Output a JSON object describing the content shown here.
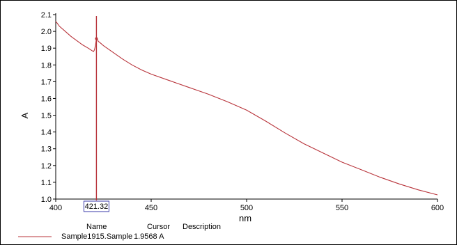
{
  "chart_data": {
    "type": "line",
    "xlabel": "nm",
    "ylabel": "A",
    "xlim": [
      400,
      600
    ],
    "ylim": [
      1.0,
      2.1
    ],
    "x_ticks": [
      400,
      450,
      500,
      550,
      600
    ],
    "y_ticks": [
      1.0,
      1.1,
      1.2,
      1.3,
      1.4,
      1.5,
      1.6,
      1.7,
      1.8,
      1.9,
      2.0,
      2.1
    ],
    "grid": false,
    "cursor": {
      "x": 421.32,
      "label": "421.32"
    },
    "series": [
      {
        "name": "Sample1915.Sample",
        "color": "#b8333a",
        "points": [
          [
            400,
            2.06
          ],
          [
            402,
            2.03
          ],
          [
            405,
            2.0
          ],
          [
            408,
            1.97
          ],
          [
            411,
            1.945
          ],
          [
            414,
            1.92
          ],
          [
            417,
            1.9
          ],
          [
            419,
            1.885
          ],
          [
            419.8,
            1.88
          ],
          [
            420.3,
            1.89
          ],
          [
            420.8,
            1.915
          ],
          [
            421.32,
            1.9568
          ],
          [
            421.8,
            1.955
          ],
          [
            422.3,
            1.94
          ],
          [
            423,
            1.935
          ],
          [
            425,
            1.915
          ],
          [
            430,
            1.875
          ],
          [
            435,
            1.835
          ],
          [
            440,
            1.8
          ],
          [
            445,
            1.77
          ],
          [
            450,
            1.745
          ],
          [
            460,
            1.705
          ],
          [
            470,
            1.665
          ],
          [
            480,
            1.625
          ],
          [
            490,
            1.58
          ],
          [
            500,
            1.53
          ],
          [
            510,
            1.465
          ],
          [
            520,
            1.395
          ],
          [
            530,
            1.33
          ],
          [
            540,
            1.275
          ],
          [
            550,
            1.22
          ],
          [
            560,
            1.175
          ],
          [
            570,
            1.13
          ],
          [
            580,
            1.09
          ],
          [
            590,
            1.055
          ],
          [
            600,
            1.025
          ]
        ]
      }
    ],
    "legend": {
      "headers": {
        "name": "Name",
        "cursor": "Cursor",
        "description": "Description"
      },
      "rows": [
        {
          "name": "Sample1915.Sample",
          "cursor": "1.9568 A",
          "description": "",
          "color": "#b8333a"
        }
      ]
    }
  }
}
